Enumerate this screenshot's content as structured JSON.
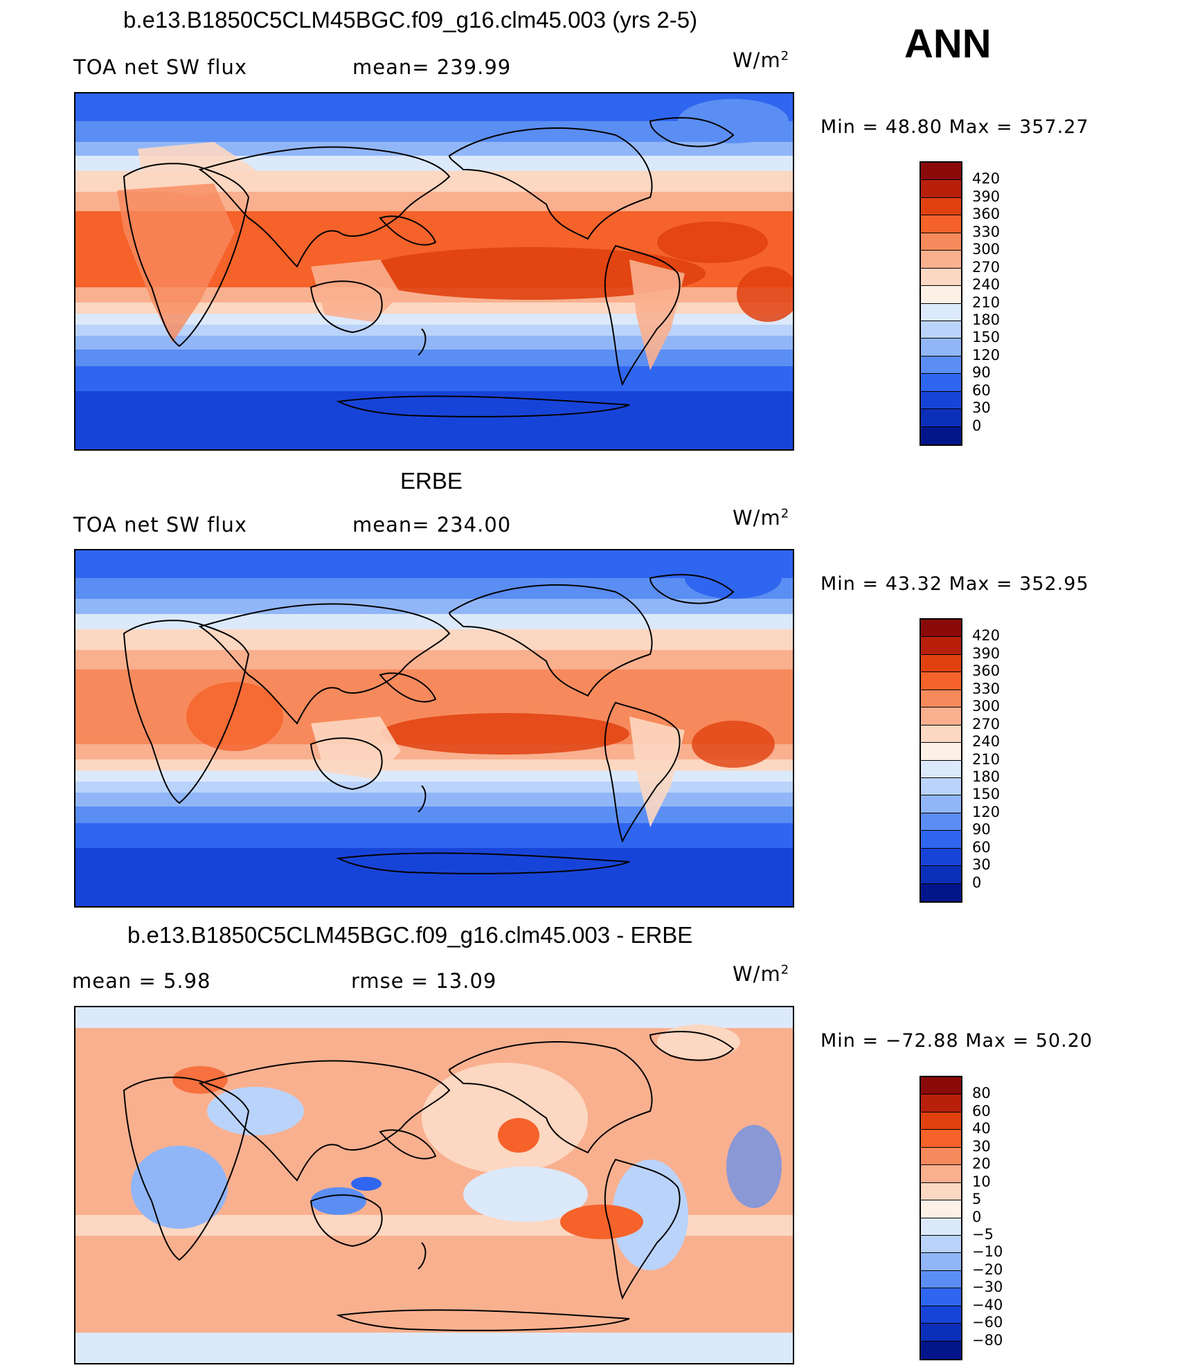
{
  "annual_label": "ANN",
  "panels": [
    {
      "title": "b.e13.B1850C5CLM45BGC.f09_g16.clm45.003 (yrs 2-5)",
      "left_label": "TOA net SW flux",
      "stat1": "mean= 239.99",
      "stat2": "",
      "units": "W/m",
      "units_sup": "2",
      "minmax": "Min =    48.80  Max  =  357.27",
      "colorbar_type": "abs",
      "levels": [
        "420",
        "390",
        "360",
        "330",
        "300",
        "270",
        "240",
        "210",
        "180",
        "150",
        "120",
        "90",
        "60",
        "30",
        "0"
      ]
    },
    {
      "title": "ERBE",
      "left_label": "TOA net SW flux",
      "stat1": "mean= 234.00",
      "stat2": "",
      "units": "W/m",
      "units_sup": "2",
      "minmax": "Min =    43.32  Max  =  352.95",
      "colorbar_type": "abs",
      "levels": [
        "420",
        "390",
        "360",
        "330",
        "300",
        "270",
        "240",
        "210",
        "180",
        "150",
        "120",
        "90",
        "60",
        "30",
        "0"
      ]
    },
    {
      "title": "b.e13.B1850C5CLM45BGC.f09_g16.clm45.003 - ERBE",
      "left_label": "mean  =      5.98",
      "stat1": "rmse  =     13.09",
      "stat2": "",
      "units": "W/m",
      "units_sup": "2",
      "minmax": "Min  = −72.88  Max  =     50.20",
      "colorbar_type": "diff",
      "levels": [
        "80",
        "60",
        "40",
        "30",
        "20",
        "10",
        "5",
        "0",
        "−5",
        "−10",
        "−20",
        "−30",
        "−40",
        "−60",
        "−80"
      ]
    }
  ],
  "colors": {
    "abs": [
      "#8a0a0a",
      "#b8200c",
      "#e0410f",
      "#f5622a",
      "#f78a5c",
      "#f9b08f",
      "#fcd7c1",
      "#fdf0e6",
      "#dce9fb",
      "#bad3fa",
      "#91b6f7",
      "#5b8ef3",
      "#2f66f0",
      "#1744d8",
      "#0b2fb8",
      "#03158a"
    ],
    "diff": [
      "#8a0a0a",
      "#b8200c",
      "#e0410f",
      "#f5622a",
      "#f78a5c",
      "#f9b08f",
      "#fcd7c1",
      "#fdf0e6",
      "#dce9fb",
      "#bad3fa",
      "#91b6f7",
      "#5b8ef3",
      "#2f66f0",
      "#1744d8",
      "#0b2fb8",
      "#03158a"
    ]
  }
}
